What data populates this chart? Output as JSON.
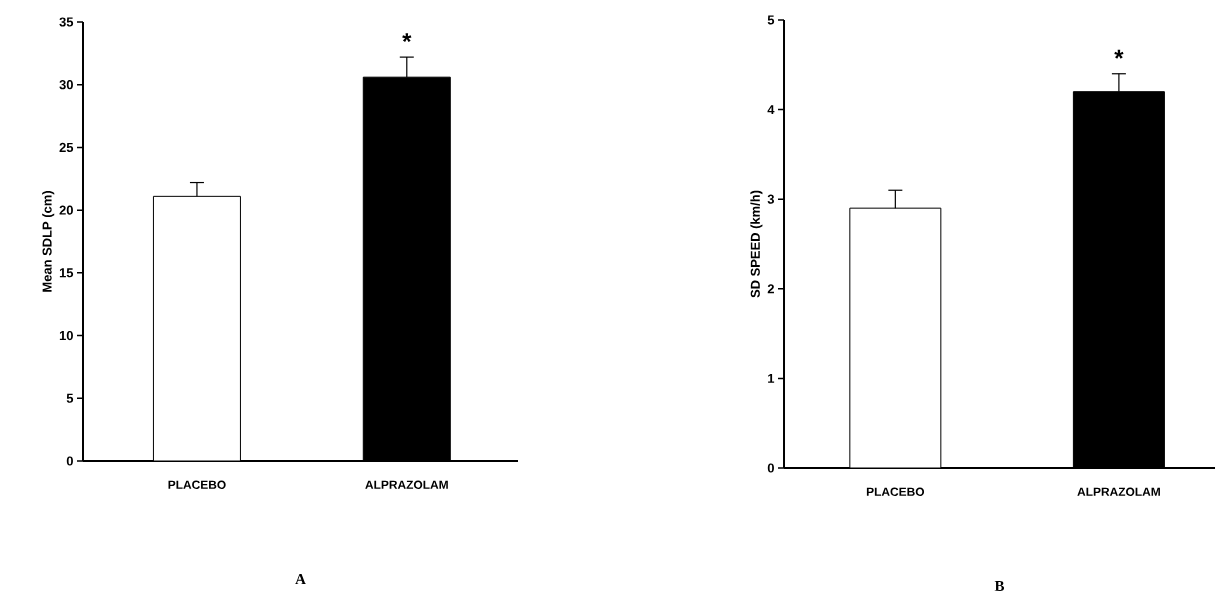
{
  "chart_data": [
    {
      "type": "bar",
      "title": "A",
      "ylabel": "Mean SDLP (cm)",
      "categories": [
        "PLACEBO",
        "ALPRAZOLAM"
      ],
      "values": [
        21.1,
        30.6
      ],
      "colors": [
        "#ffffff",
        "#000000"
      ],
      "errors": [
        [
          21.1,
          22.2
        ],
        [
          30.6,
          32.2
        ]
      ],
      "ylim": [
        0,
        35
      ],
      "yticks": [
        0,
        5,
        10,
        15,
        20,
        25,
        30,
        35
      ],
      "grid": false,
      "annotations": [
        "*"
      ]
    },
    {
      "type": "bar",
      "title": "B",
      "ylabel": "SD SPEED (km/h)",
      "categories": [
        "PLACEBO",
        "ALPRAZOLAM"
      ],
      "values": [
        2.9,
        4.2
      ],
      "colors": [
        "#ffffff",
        "#000000"
      ],
      "errors": [
        [
          2.9,
          3.1
        ],
        [
          4.2,
          4.4
        ]
      ],
      "ylim": [
        0,
        5
      ],
      "yticks": [
        0,
        1,
        2,
        3,
        4,
        5
      ],
      "grid": false,
      "annotations": [
        "*"
      ]
    }
  ]
}
